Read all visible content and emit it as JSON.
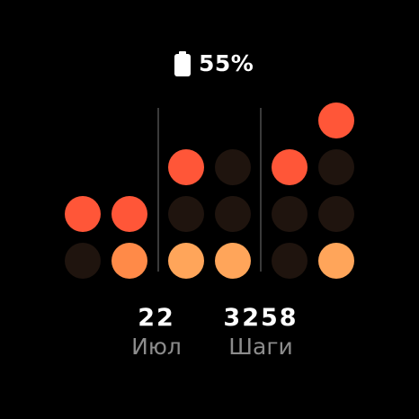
{
  "status": {
    "battery_icon": "battery-icon",
    "battery_level": "55%"
  },
  "dot_colors": {
    "dim": "#1f140e",
    "low": "#ff5638",
    "mid": "#ff8a48",
    "high": "#ffa55a"
  },
  "dot_grid": [
    [
      "dim",
      "low"
    ],
    [
      "mid",
      "low"
    ],
    [
      "high",
      "dim",
      "low"
    ],
    [
      "high",
      "dim",
      "dim"
    ],
    [
      "dim",
      "dim",
      "low"
    ],
    [
      "high",
      "dim",
      "dim",
      "low"
    ]
  ],
  "stats": {
    "date_value": "22",
    "date_label": "Июл",
    "steps_value": "3258",
    "steps_label": "Шаги"
  }
}
